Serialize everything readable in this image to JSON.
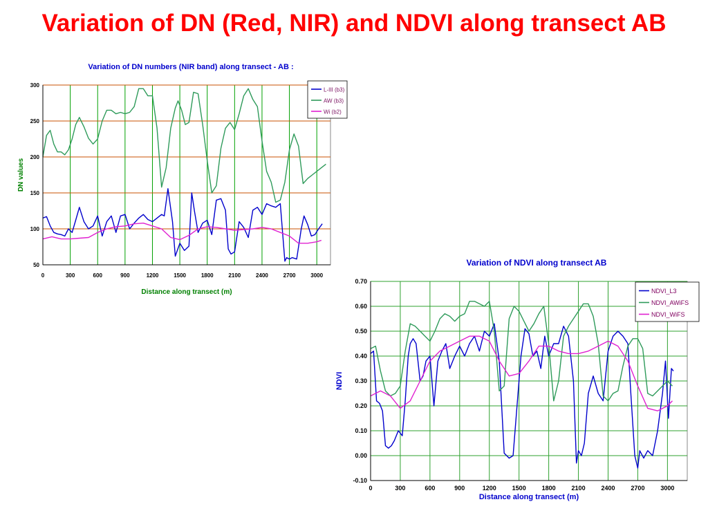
{
  "slide": {
    "title": "Variation of DN (Red, NIR) and NDVI along transect AB"
  },
  "chart_data": [
    {
      "type": "line",
      "title": "Variation of DN numbers (NIR band) along transect - AB :",
      "xlabel": "Distance along transect (m)",
      "ylabel": "DN values",
      "xlim": [
        0,
        3150
      ],
      "ylim": [
        50,
        300
      ],
      "xticks": [
        0,
        300,
        600,
        900,
        1200,
        1500,
        1800,
        2100,
        2400,
        2700,
        3000
      ],
      "yticks": [
        50,
        100,
        150,
        200,
        250,
        300
      ],
      "grid": true,
      "legend_position": "top-right",
      "colors": {
        "title": "#0000cc",
        "axis_label": "#008000",
        "vgrid": "#00a000",
        "hgrid": "#c85000"
      },
      "series": [
        {
          "name": "L-III (b3)",
          "color": "#0000cc",
          "x": [
            0,
            40,
            80,
            120,
            160,
            200,
            240,
            280,
            320,
            360,
            400,
            450,
            500,
            550,
            600,
            650,
            700,
            750,
            800,
            850,
            900,
            950,
            1000,
            1050,
            1100,
            1150,
            1200,
            1250,
            1300,
            1330,
            1370,
            1420,
            1450,
            1500,
            1550,
            1600,
            1630,
            1660,
            1700,
            1750,
            1800,
            1850,
            1900,
            1950,
            2000,
            2030,
            2060,
            2100,
            2150,
            2200,
            2250,
            2300,
            2350,
            2400,
            2450,
            2500,
            2550,
            2600,
            2650,
            2670,
            2700,
            2730,
            2780,
            2830,
            2860,
            2900,
            2940,
            2980,
            3020,
            3060
          ],
          "y": [
            115,
            117,
            104,
            95,
            93,
            92,
            90,
            100,
            95,
            112,
            130,
            110,
            100,
            104,
            118,
            90,
            110,
            118,
            95,
            118,
            120,
            100,
            108,
            115,
            120,
            113,
            110,
            115,
            120,
            118,
            156,
            110,
            62,
            80,
            70,
            76,
            150,
            125,
            95,
            108,
            112,
            92,
            140,
            142,
            126,
            72,
            65,
            68,
            110,
            102,
            88,
            126,
            130,
            120,
            135,
            132,
            130,
            135,
            55,
            60,
            58,
            60,
            58,
            100,
            118,
            106,
            90,
            92,
            100,
            107
          ]
        },
        {
          "name": "AW (b3)",
          "color": "#2e9a5a",
          "x": [
            0,
            40,
            80,
            120,
            160,
            200,
            240,
            280,
            320,
            360,
            400,
            450,
            500,
            550,
            600,
            650,
            700,
            750,
            800,
            850,
            900,
            950,
            1000,
            1050,
            1100,
            1150,
            1200,
            1250,
            1300,
            1350,
            1400,
            1450,
            1480,
            1520,
            1560,
            1600,
            1650,
            1700,
            1750,
            1800,
            1850,
            1900,
            1950,
            2000,
            2050,
            2100,
            2150,
            2200,
            2250,
            2300,
            2350,
            2400,
            2450,
            2500,
            2550,
            2600,
            2650,
            2700,
            2750,
            2800,
            2850,
            2900,
            2950,
            3000,
            3050,
            3100
          ],
          "y": [
            200,
            230,
            237,
            218,
            207,
            207,
            203,
            210,
            225,
            245,
            255,
            242,
            226,
            218,
            225,
            250,
            265,
            265,
            260,
            262,
            260,
            262,
            270,
            295,
            295,
            285,
            285,
            240,
            158,
            185,
            240,
            268,
            278,
            265,
            245,
            248,
            290,
            288,
            245,
            195,
            150,
            160,
            212,
            240,
            248,
            238,
            260,
            285,
            295,
            280,
            270,
            222,
            180,
            165,
            137,
            140,
            165,
            210,
            232,
            215,
            163,
            170,
            175,
            180,
            185,
            190
          ]
        },
        {
          "name": "Wi (b2)",
          "color": "#e020d0",
          "x": [
            0,
            100,
            200,
            300,
            400,
            500,
            600,
            700,
            800,
            900,
            1000,
            1100,
            1200,
            1300,
            1400,
            1500,
            1600,
            1700,
            1800,
            1900,
            2000,
            2100,
            2200,
            2300,
            2400,
            2500,
            2600,
            2700,
            2800,
            2900,
            3000,
            3050
          ],
          "y": [
            86,
            89,
            86,
            86,
            87,
            88,
            95,
            100,
            103,
            104,
            107,
            108,
            104,
            100,
            88,
            85,
            91,
            100,
            103,
            102,
            100,
            98,
            99,
            100,
            102,
            100,
            95,
            90,
            80,
            80,
            82,
            84
          ]
        }
      ]
    },
    {
      "type": "line",
      "title": "Variation of NDVI along transect AB",
      "xlabel": "Distance along transect (m)",
      "ylabel": "NDVI",
      "xlim": [
        0,
        3200
      ],
      "ylim": [
        -0.1,
        0.7
      ],
      "xticks": [
        0,
        300,
        600,
        900,
        1200,
        1500,
        1800,
        2100,
        2400,
        2700,
        3000
      ],
      "yticks": [
        -0.1,
        0.0,
        0.1,
        0.2,
        0.3,
        0.4,
        0.5,
        0.6,
        0.7
      ],
      "yticklabels": [
        "-0.10",
        "0.00",
        "0.10",
        "0.20",
        "0.30",
        "0.40",
        "0.50",
        "0.60",
        "0.70"
      ],
      "grid": true,
      "legend_position": "top-right",
      "colors": {
        "title": "#0000cc",
        "axis_label": "#0000cc",
        "grid": "#2ea02e"
      },
      "series": [
        {
          "name": "NDVI_L3",
          "color": "#0000cc",
          "x": [
            0,
            30,
            60,
            90,
            120,
            150,
            180,
            210,
            240,
            280,
            320,
            350,
            380,
            400,
            430,
            460,
            500,
            530,
            560,
            600,
            640,
            680,
            700,
            720,
            760,
            800,
            850,
            900,
            950,
            1000,
            1050,
            1100,
            1150,
            1200,
            1250,
            1300,
            1350,
            1400,
            1440,
            1480,
            1520,
            1560,
            1600,
            1640,
            1680,
            1720,
            1760,
            1800,
            1850,
            1900,
            1950,
            2000,
            2050,
            2080,
            2100,
            2130,
            2160,
            2200,
            2250,
            2300,
            2350,
            2400,
            2450,
            2500,
            2550,
            2600,
            2630,
            2670,
            2700,
            2720,
            2760,
            2800,
            2850,
            2900,
            2950,
            2980,
            3010,
            3040,
            3060
          ],
          "y": [
            0.41,
            0.42,
            0.22,
            0.21,
            0.18,
            0.04,
            0.03,
            0.04,
            0.06,
            0.1,
            0.08,
            0.22,
            0.4,
            0.45,
            0.47,
            0.45,
            0.3,
            0.32,
            0.38,
            0.4,
            0.2,
            0.38,
            0.4,
            0.42,
            0.45,
            0.35,
            0.4,
            0.44,
            0.4,
            0.45,
            0.48,
            0.42,
            0.5,
            0.48,
            0.53,
            0.38,
            0.01,
            -0.01,
            0.0,
            0.2,
            0.4,
            0.51,
            0.49,
            0.4,
            0.42,
            0.35,
            0.48,
            0.4,
            0.45,
            0.45,
            0.52,
            0.48,
            0.3,
            -0.03,
            0.02,
            0.0,
            0.05,
            0.25,
            0.32,
            0.25,
            0.22,
            0.42,
            0.48,
            0.5,
            0.48,
            0.45,
            0.25,
            0.0,
            -0.05,
            0.02,
            -0.01,
            0.02,
            0.0,
            0.1,
            0.25,
            0.38,
            0.15,
            0.35,
            0.34
          ]
        },
        {
          "name": "NDVI_AWiFS",
          "color": "#2e9a5a",
          "x": [
            0,
            50,
            100,
            150,
            200,
            250,
            300,
            350,
            400,
            450,
            500,
            550,
            600,
            650,
            700,
            750,
            800,
            850,
            900,
            950,
            1000,
            1050,
            1100,
            1150,
            1200,
            1250,
            1300,
            1350,
            1400,
            1450,
            1500,
            1550,
            1600,
            1650,
            1700,
            1750,
            1800,
            1850,
            1900,
            1950,
            2000,
            2050,
            2100,
            2150,
            2200,
            2250,
            2300,
            2350,
            2400,
            2450,
            2500,
            2550,
            2600,
            2650,
            2700,
            2750,
            2800,
            2850,
            2900,
            2950,
            3000,
            3050
          ],
          "y": [
            0.43,
            0.44,
            0.34,
            0.26,
            0.24,
            0.25,
            0.28,
            0.42,
            0.53,
            0.52,
            0.5,
            0.48,
            0.46,
            0.5,
            0.55,
            0.57,
            0.56,
            0.54,
            0.56,
            0.57,
            0.62,
            0.62,
            0.61,
            0.6,
            0.62,
            0.5,
            0.26,
            0.28,
            0.55,
            0.6,
            0.58,
            0.54,
            0.5,
            0.53,
            0.57,
            0.6,
            0.45,
            0.22,
            0.3,
            0.48,
            0.52,
            0.55,
            0.58,
            0.61,
            0.61,
            0.56,
            0.45,
            0.24,
            0.22,
            0.25,
            0.26,
            0.36,
            0.44,
            0.47,
            0.47,
            0.43,
            0.25,
            0.24,
            0.26,
            0.28,
            0.3,
            0.28
          ]
        },
        {
          "name": "NDVI_WiFS",
          "color": "#e020d0",
          "x": [
            0,
            100,
            200,
            300,
            400,
            500,
            600,
            700,
            800,
            900,
            1000,
            1100,
            1200,
            1300,
            1400,
            1500,
            1600,
            1700,
            1800,
            1900,
            2000,
            2100,
            2200,
            2300,
            2400,
            2500,
            2600,
            2700,
            2800,
            2900,
            3000,
            3050
          ],
          "y": [
            0.24,
            0.26,
            0.24,
            0.19,
            0.22,
            0.3,
            0.38,
            0.42,
            0.44,
            0.46,
            0.48,
            0.48,
            0.46,
            0.38,
            0.32,
            0.33,
            0.38,
            0.44,
            0.44,
            0.42,
            0.41,
            0.41,
            0.42,
            0.44,
            0.46,
            0.44,
            0.38,
            0.28,
            0.19,
            0.18,
            0.2,
            0.22
          ]
        }
      ]
    }
  ]
}
